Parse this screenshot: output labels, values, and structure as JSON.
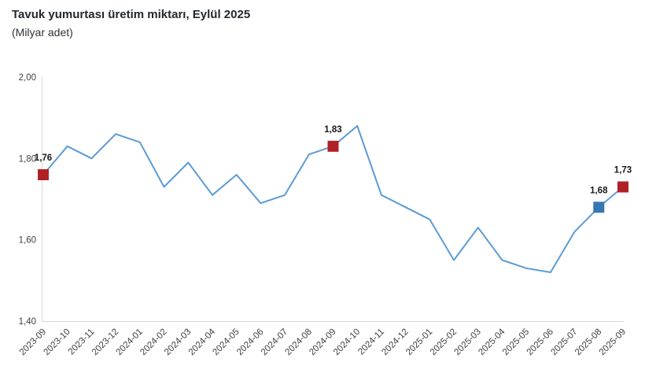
{
  "chart_data": {
    "type": "line",
    "title": "Tavuk yumurtası üretim miktarı, Eylül 2025",
    "subtitle": "(Milyar adet)",
    "x": [
      "2023-09",
      "2023-10",
      "2023-11",
      "2023-12",
      "2024-01",
      "2024-02",
      "2024-03",
      "2024-04",
      "2024-05",
      "2024-06",
      "2024-07",
      "2024-08",
      "2024-09",
      "2024-10",
      "2024-11",
      "2024-12",
      "2025-01",
      "2025-02",
      "2025-03",
      "2025-04",
      "2025-05",
      "2025-06",
      "2025-07",
      "2025-08",
      "2025-09"
    ],
    "values": [
      1.76,
      1.83,
      1.8,
      1.86,
      1.84,
      1.73,
      1.79,
      1.71,
      1.76,
      1.69,
      1.71,
      1.81,
      1.83,
      1.88,
      1.71,
      1.68,
      1.65,
      1.55,
      1.63,
      1.55,
      1.53,
      1.52,
      1.62,
      1.68,
      1.73
    ],
    "ylim": [
      1.4,
      2.0
    ],
    "yticks": [
      1.4,
      1.6,
      1.8,
      2.0
    ],
    "ytick_labels": [
      "1,40",
      "1,60",
      "1,80",
      "2,00"
    ],
    "grid": false,
    "legend": false,
    "line_color": "#5b9bd5",
    "axis_color": "#d9d9d9",
    "highlighted_points": [
      {
        "x": "2023-09",
        "value": 1.76,
        "label": "1,76",
        "color": "#b02127"
      },
      {
        "x": "2024-09",
        "value": 1.83,
        "label": "1,83",
        "color": "#b02127"
      },
      {
        "x": "2025-08",
        "value": 1.68,
        "label": "1,68",
        "color": "#3576b4"
      },
      {
        "x": "2025-09",
        "value": 1.73,
        "label": "1,73",
        "color": "#b02127"
      }
    ]
  }
}
